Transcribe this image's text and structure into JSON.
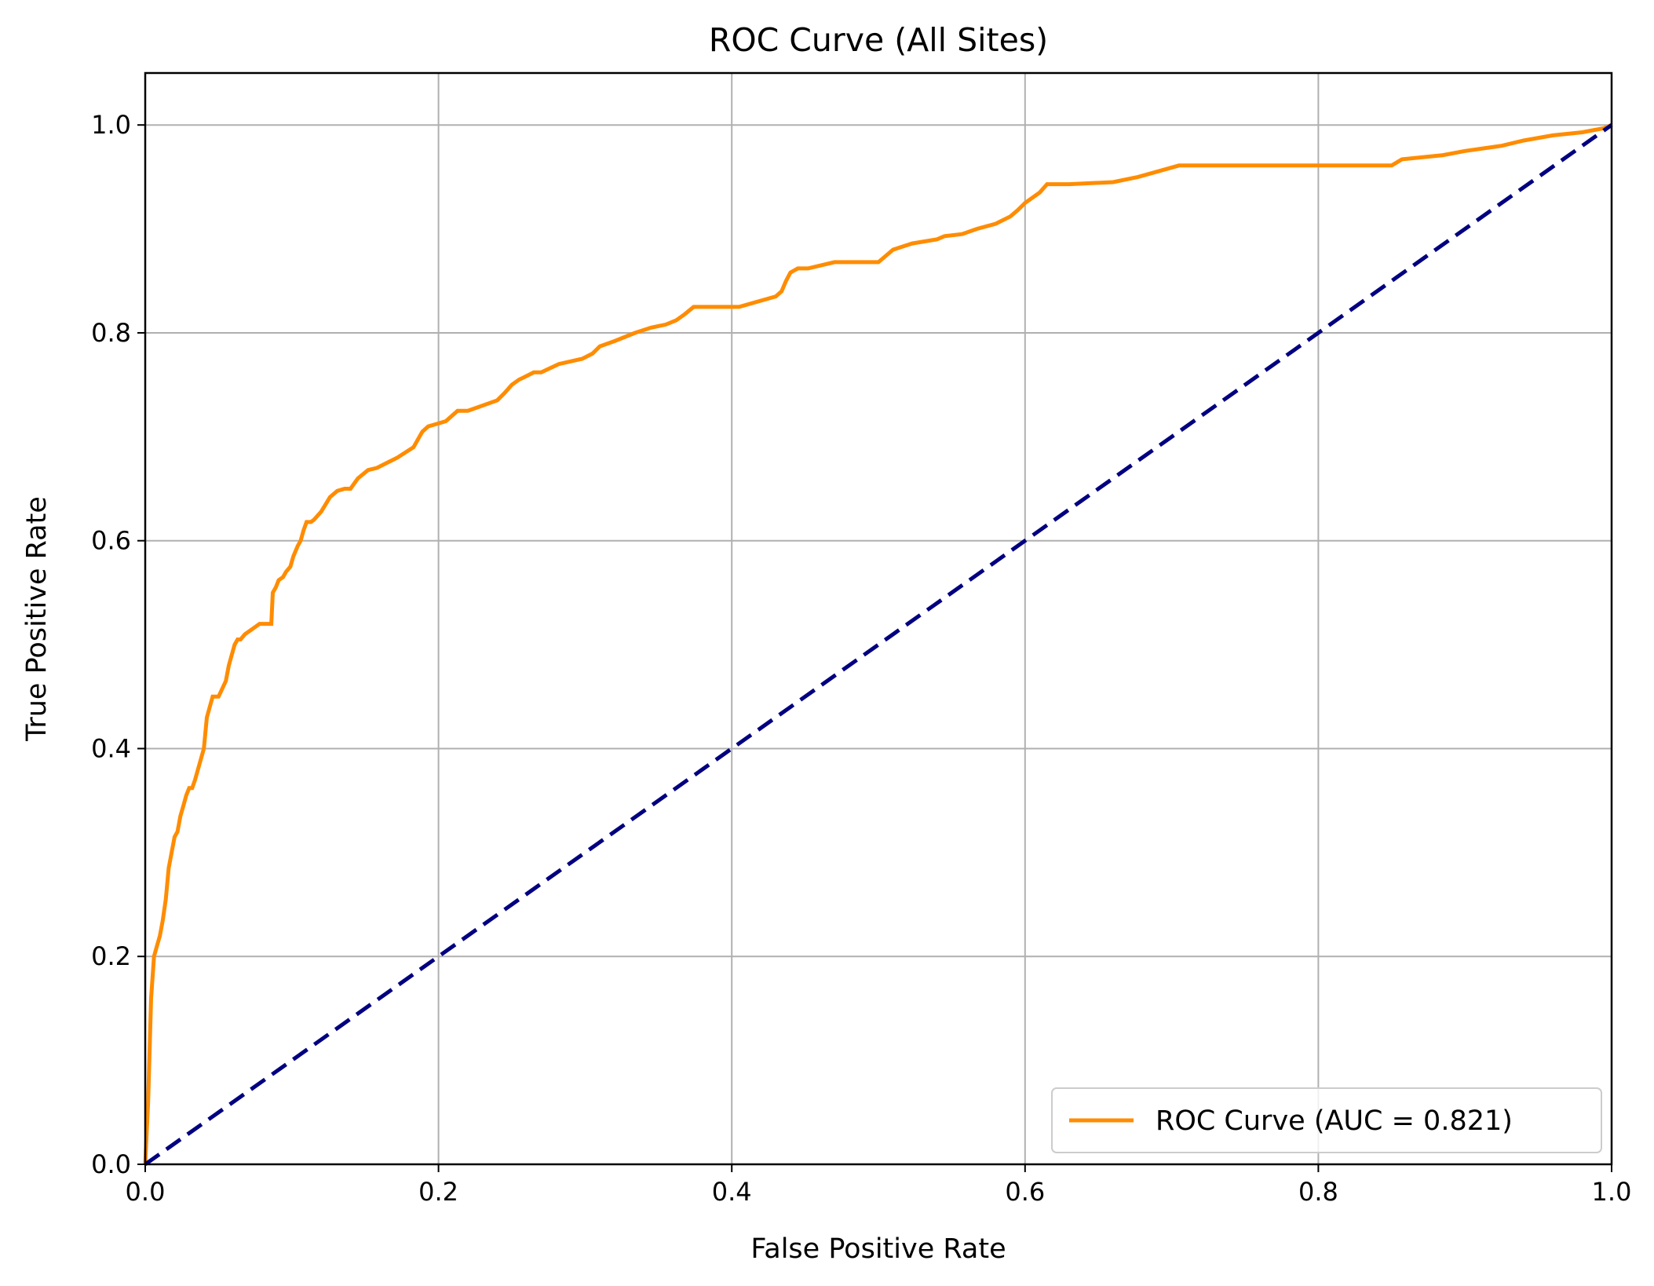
{
  "chart_data": {
    "type": "line",
    "title": "ROC Curve (All Sites)",
    "xlabel": "False Positive Rate",
    "ylabel": "True Positive Rate",
    "xlim": [
      0.0,
      1.05
    ],
    "ylim": [
      0.0,
      1.05
    ],
    "x_ticks": [
      "0.0",
      "0.2",
      "0.4",
      "0.6",
      "0.8",
      "1.0"
    ],
    "y_ticks": [
      "0.0",
      "0.2",
      "0.4",
      "0.6",
      "0.8",
      "1.0"
    ],
    "x_tick_values": [
      0,
      0.2,
      0.4,
      0.6,
      0.8,
      1.0
    ],
    "y_tick_values": [
      0,
      0.2,
      0.4,
      0.6,
      0.8,
      1.0
    ],
    "grid": true,
    "legend_position": "lower-right",
    "series": [
      {
        "name": "ROC Curve (AUC = 0.821)",
        "color": "#ff8c00",
        "style": "solid",
        "x": [
          0.0,
          0.002,
          0.003,
          0.004,
          0.006,
          0.008,
          0.01,
          0.012,
          0.014,
          0.016,
          0.018,
          0.02,
          0.022,
          0.024,
          0.026,
          0.028,
          0.03,
          0.032,
          0.034,
          0.036,
          0.04,
          0.042,
          0.044,
          0.046,
          0.048,
          0.05,
          0.055,
          0.057,
          0.059,
          0.061,
          0.063,
          0.065,
          0.068,
          0.078,
          0.086,
          0.087,
          0.089,
          0.091,
          0.094,
          0.096,
          0.099,
          0.101,
          0.104,
          0.106,
          0.108,
          0.11,
          0.113,
          0.115,
          0.12,
          0.123,
          0.126,
          0.131,
          0.136,
          0.14,
          0.145,
          0.152,
          0.158,
          0.165,
          0.172,
          0.183,
          0.187,
          0.189,
          0.193,
          0.198,
          0.205,
          0.213,
          0.22,
          0.24,
          0.245,
          0.25,
          0.255,
          0.258,
          0.265,
          0.27,
          0.282,
          0.298,
          0.305,
          0.31,
          0.32,
          0.334,
          0.345,
          0.355,
          0.362,
          0.368,
          0.374,
          0.384,
          0.405,
          0.43,
          0.434,
          0.437,
          0.44,
          0.445,
          0.452,
          0.47,
          0.487,
          0.5,
          0.505,
          0.51,
          0.523,
          0.54,
          0.545,
          0.557,
          0.567,
          0.58,
          0.59,
          0.595,
          0.6,
          0.61,
          0.615,
          0.63,
          0.66,
          0.677,
          0.705,
          0.76,
          0.8,
          0.85,
          0.857,
          0.885,
          0.9,
          0.925,
          0.94,
          0.96,
          0.98,
          0.995,
          1.0
        ],
        "y": [
          0.0,
          0.06,
          0.11,
          0.16,
          0.2,
          0.21,
          0.22,
          0.235,
          0.255,
          0.285,
          0.3,
          0.315,
          0.32,
          0.335,
          0.345,
          0.355,
          0.362,
          0.362,
          0.37,
          0.38,
          0.4,
          0.43,
          0.44,
          0.45,
          0.45,
          0.45,
          0.465,
          0.48,
          0.49,
          0.5,
          0.505,
          0.505,
          0.51,
          0.52,
          0.52,
          0.55,
          0.555,
          0.562,
          0.565,
          0.57,
          0.575,
          0.585,
          0.595,
          0.6,
          0.61,
          0.618,
          0.618,
          0.62,
          0.628,
          0.635,
          0.642,
          0.648,
          0.65,
          0.65,
          0.66,
          0.668,
          0.67,
          0.675,
          0.68,
          0.69,
          0.7,
          0.705,
          0.71,
          0.712,
          0.715,
          0.725,
          0.725,
          0.735,
          0.742,
          0.75,
          0.755,
          0.757,
          0.762,
          0.762,
          0.77,
          0.775,
          0.78,
          0.787,
          0.792,
          0.8,
          0.805,
          0.808,
          0.812,
          0.818,
          0.825,
          0.825,
          0.825,
          0.835,
          0.84,
          0.85,
          0.858,
          0.862,
          0.862,
          0.868,
          0.868,
          0.868,
          0.874,
          0.88,
          0.886,
          0.89,
          0.893,
          0.895,
          0.9,
          0.905,
          0.912,
          0.918,
          0.925,
          0.935,
          0.943,
          0.943,
          0.945,
          0.95,
          0.961,
          0.961,
          0.961,
          0.961,
          0.967,
          0.971,
          0.975,
          0.98,
          0.985,
          0.99,
          0.993,
          0.997,
          1.0
        ]
      },
      {
        "name": "",
        "color": "#000080",
        "style": "dashed",
        "x": [
          0.0,
          1.0
        ],
        "y": [
          0.0,
          1.0
        ]
      }
    ]
  }
}
